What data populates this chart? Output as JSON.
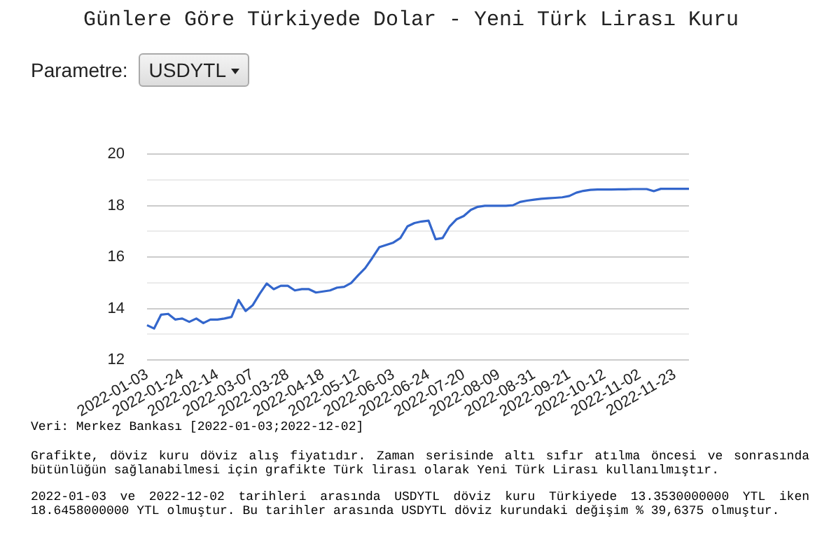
{
  "chart_data": {
    "type": "line",
    "title": "Günlere Göre Türkiyede Dolar - Yeni Türk Lirası Kuru",
    "annotations": [
      "Parametre:",
      "USDYTL",
      "Veri: Merkez Bankası [2022-01-03;2022-12-02]",
      "Grafikte, döviz kuru döviz alış fiyatıdır. Zaman serisinde altı sıfır atılma öncesi ve sonrasında bütünlüğün sağlanabilmesi için grafikte Türk lirası olarak Yeni Türk Lirası kullanılmıştır.",
      "2022-01-03 ve 2022-12-02 tarihleri arasında USDYTL döviz kuru Türkiyede 13.3530000000 YTL iken 18.6458000000 YTL olmuştur. Bu tarihler arasında USDYTL döviz kurundaki değişim % 39,6375 olmuştur."
    ],
    "categories": [
      "2022-01-03",
      null,
      null,
      null,
      null,
      "2022-01-24",
      null,
      null,
      null,
      null,
      "2022-02-14",
      null,
      null,
      null,
      null,
      "2022-03-07",
      null,
      null,
      null,
      null,
      "2022-03-28",
      null,
      null,
      null,
      null,
      "2022-04-18",
      null,
      null,
      null,
      null,
      "2022-05-12",
      null,
      null,
      null,
      null,
      "2022-06-03",
      null,
      null,
      null,
      null,
      "2022-06-24",
      null,
      null,
      null,
      null,
      "2022-07-20",
      null,
      null,
      null,
      null,
      "2022-08-09",
      null,
      null,
      null,
      null,
      "2022-08-31",
      null,
      null,
      null,
      null,
      "2022-09-21",
      null,
      null,
      null,
      null,
      "2022-10-12",
      null,
      null,
      null,
      null,
      "2022-11-02",
      null,
      null,
      null,
      null,
      "2022-11-23",
      null,
      null
    ],
    "series": [
      {
        "color": "#3366cc",
        "values": [
          13.35,
          13.22,
          13.76,
          13.79,
          13.57,
          13.61,
          13.48,
          13.61,
          13.43,
          13.57,
          13.57,
          13.61,
          13.67,
          14.33,
          13.9,
          14.12,
          14.57,
          14.97,
          14.75,
          14.88,
          14.88,
          14.7,
          14.75,
          14.75,
          14.62,
          14.66,
          14.7,
          14.81,
          14.84,
          14.99,
          15.29,
          15.57,
          15.96,
          16.38,
          16.47,
          16.56,
          16.74,
          17.19,
          17.32,
          17.38,
          17.41,
          16.69,
          16.74,
          17.19,
          17.47,
          17.59,
          17.83,
          17.95,
          17.99,
          17.99,
          17.99,
          17.99,
          18.01,
          18.14,
          18.19,
          18.23,
          18.26,
          18.28,
          18.3,
          18.32,
          18.37,
          18.5,
          18.57,
          18.61,
          18.62,
          18.62,
          18.62,
          18.63,
          18.63,
          18.64,
          18.64,
          18.64,
          18.56,
          18.65,
          18.65,
          18.65,
          18.65,
          18.65
        ]
      }
    ],
    "ylim": [
      12,
      20
    ],
    "yticks": [
      12,
      {
        "value": 13,
        "label": null
      },
      14,
      {
        "value": 15,
        "label": null
      },
      16,
      {
        "value": 17,
        "label": null
      },
      18,
      {
        "value": 19,
        "label": null
      },
      20
    ],
    "grid": "y",
    "legend": false,
    "marker": "none",
    "line_style": "solid"
  }
}
